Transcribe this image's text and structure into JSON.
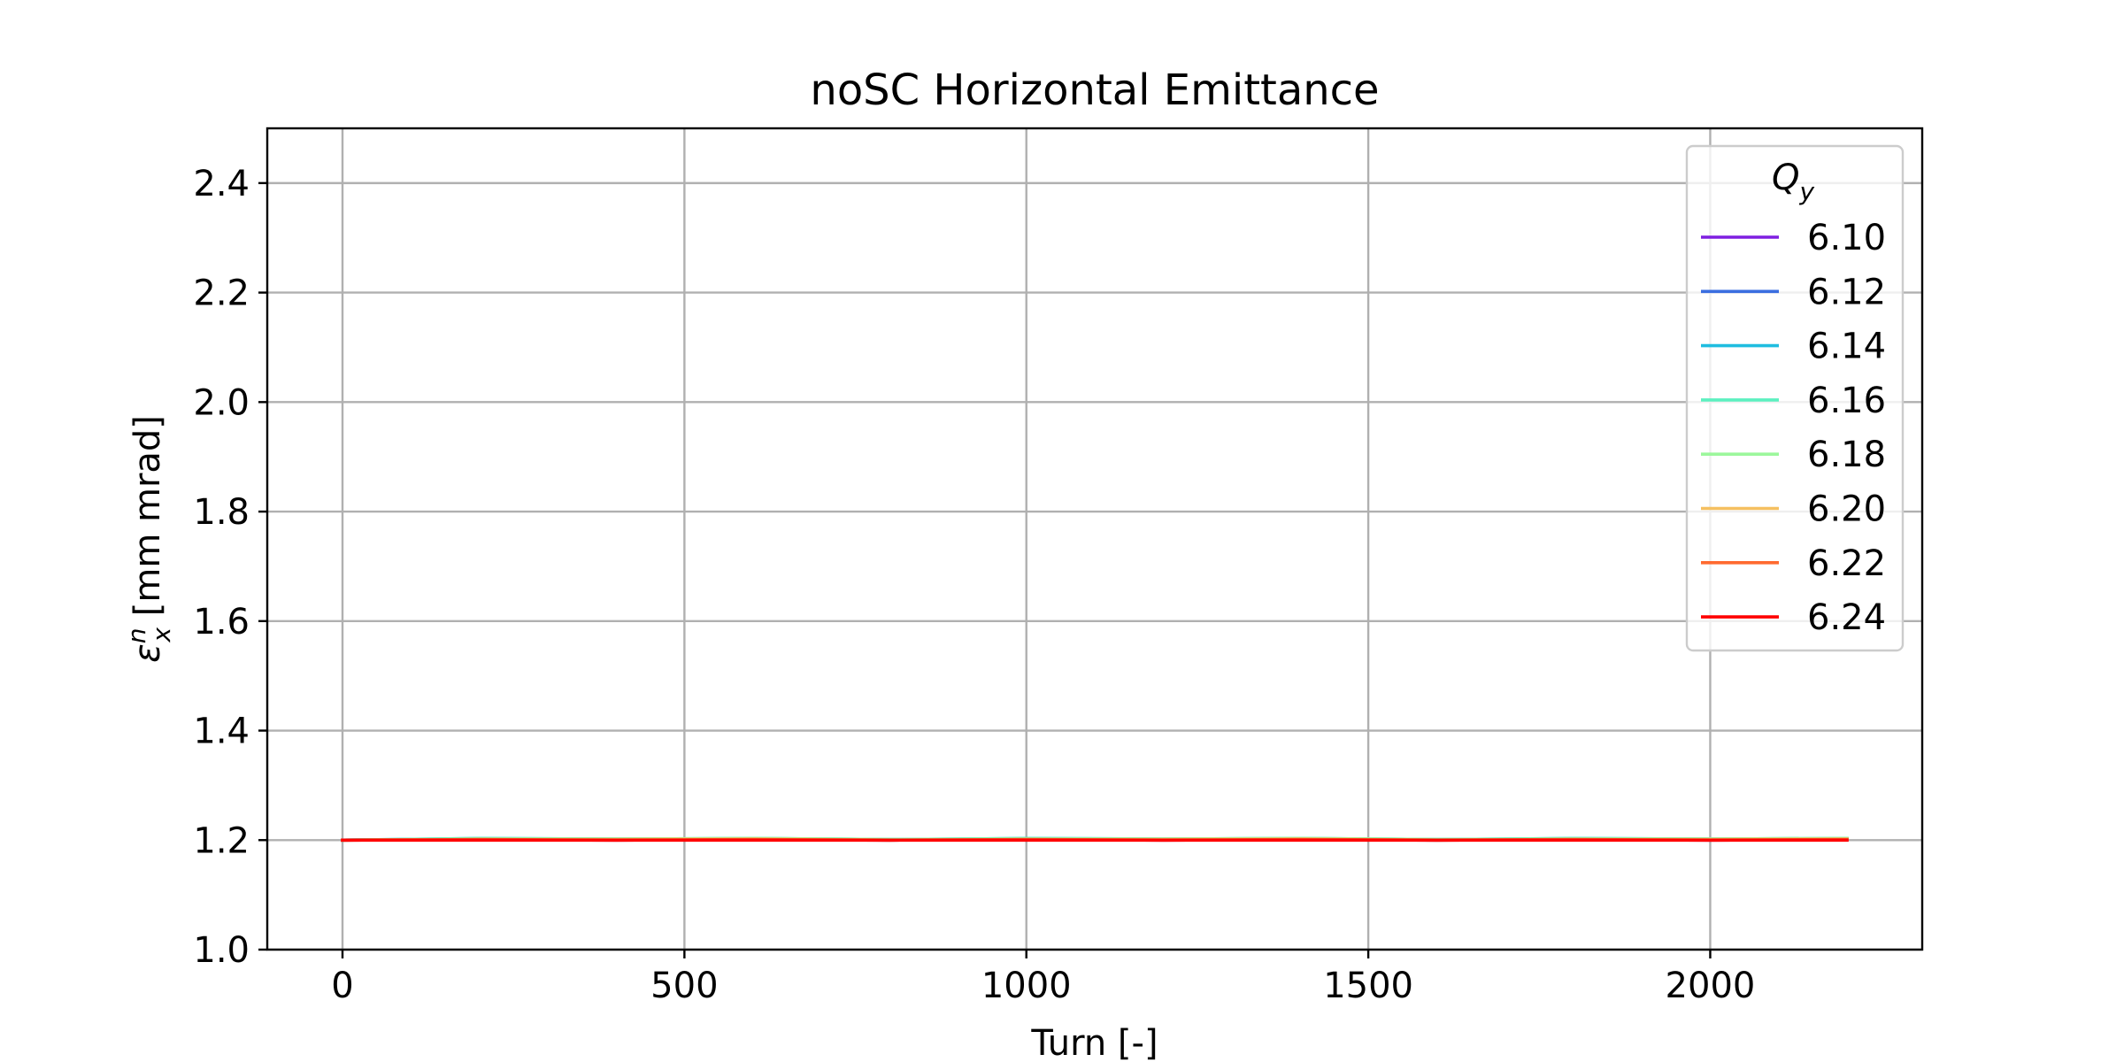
{
  "chart_data": {
    "type": "line",
    "title": "noSC Horizontal Emittance",
    "xlabel": "Turn [-]",
    "ylabel": {
      "symbol": "ε",
      "subscript": "x",
      "superscript": "n",
      "unit": " [mm mrad]"
    },
    "xlim": [
      -110,
      2310
    ],
    "ylim": [
      1.0,
      2.5
    ],
    "xticks": [
      0,
      500,
      1000,
      1500,
      2000
    ],
    "xtick_labels": [
      "0",
      "500",
      "1000",
      "1500",
      "2000"
    ],
    "yticks": [
      1.0,
      1.2,
      1.4,
      1.6,
      1.8,
      2.0,
      2.2,
      2.4
    ],
    "ytick_labels": [
      "1.0",
      "1.2",
      "1.4",
      "1.6",
      "1.8",
      "2.0",
      "2.2",
      "2.4"
    ],
    "grid": true,
    "legend": {
      "title_symbol": "Q",
      "title_subscript": "y",
      "placement": "top-right"
    },
    "x": [
      0,
      200,
      400,
      600,
      800,
      1000,
      1200,
      1400,
      1600,
      1800,
      2000,
      2200
    ],
    "series": [
      {
        "name": "6.10",
        "color": "#7f1fe0",
        "values": [
          1.2,
          1.201,
          1.2,
          1.201,
          1.2,
          1.201,
          1.2,
          1.201,
          1.2,
          1.201,
          1.2,
          1.201
        ]
      },
      {
        "name": "6.12",
        "color": "#3a6ee0",
        "values": [
          1.2,
          1.202,
          1.201,
          1.202,
          1.2,
          1.202,
          1.201,
          1.202,
          1.2,
          1.202,
          1.201,
          1.202
        ]
      },
      {
        "name": "6.14",
        "color": "#1fbde0",
        "values": [
          1.2,
          1.203,
          1.202,
          1.203,
          1.201,
          1.203,
          1.202,
          1.203,
          1.201,
          1.203,
          1.202,
          1.203
        ]
      },
      {
        "name": "6.16",
        "color": "#5cf0c0",
        "values": [
          1.2,
          1.203,
          1.202,
          1.203,
          1.201,
          1.203,
          1.202,
          1.203,
          1.201,
          1.203,
          1.202,
          1.203
        ]
      },
      {
        "name": "6.18",
        "color": "#9cf79c",
        "values": [
          1.2,
          1.202,
          1.202,
          1.203,
          1.201,
          1.202,
          1.202,
          1.203,
          1.201,
          1.202,
          1.202,
          1.203
        ]
      },
      {
        "name": "6.20",
        "color": "#f5c060",
        "values": [
          1.2,
          1.201,
          1.201,
          1.202,
          1.2,
          1.201,
          1.201,
          1.202,
          1.2,
          1.201,
          1.201,
          1.202
        ]
      },
      {
        "name": "6.22",
        "color": "#ff6a30",
        "values": [
          1.2,
          1.201,
          1.2,
          1.201,
          1.2,
          1.201,
          1.2,
          1.201,
          1.2,
          1.201,
          1.2,
          1.201
        ]
      },
      {
        "name": "6.24",
        "color": "#ff0000",
        "values": [
          1.2,
          1.2,
          1.2,
          1.2,
          1.2,
          1.2,
          1.2,
          1.2,
          1.2,
          1.2,
          1.2,
          1.2
        ]
      }
    ]
  }
}
